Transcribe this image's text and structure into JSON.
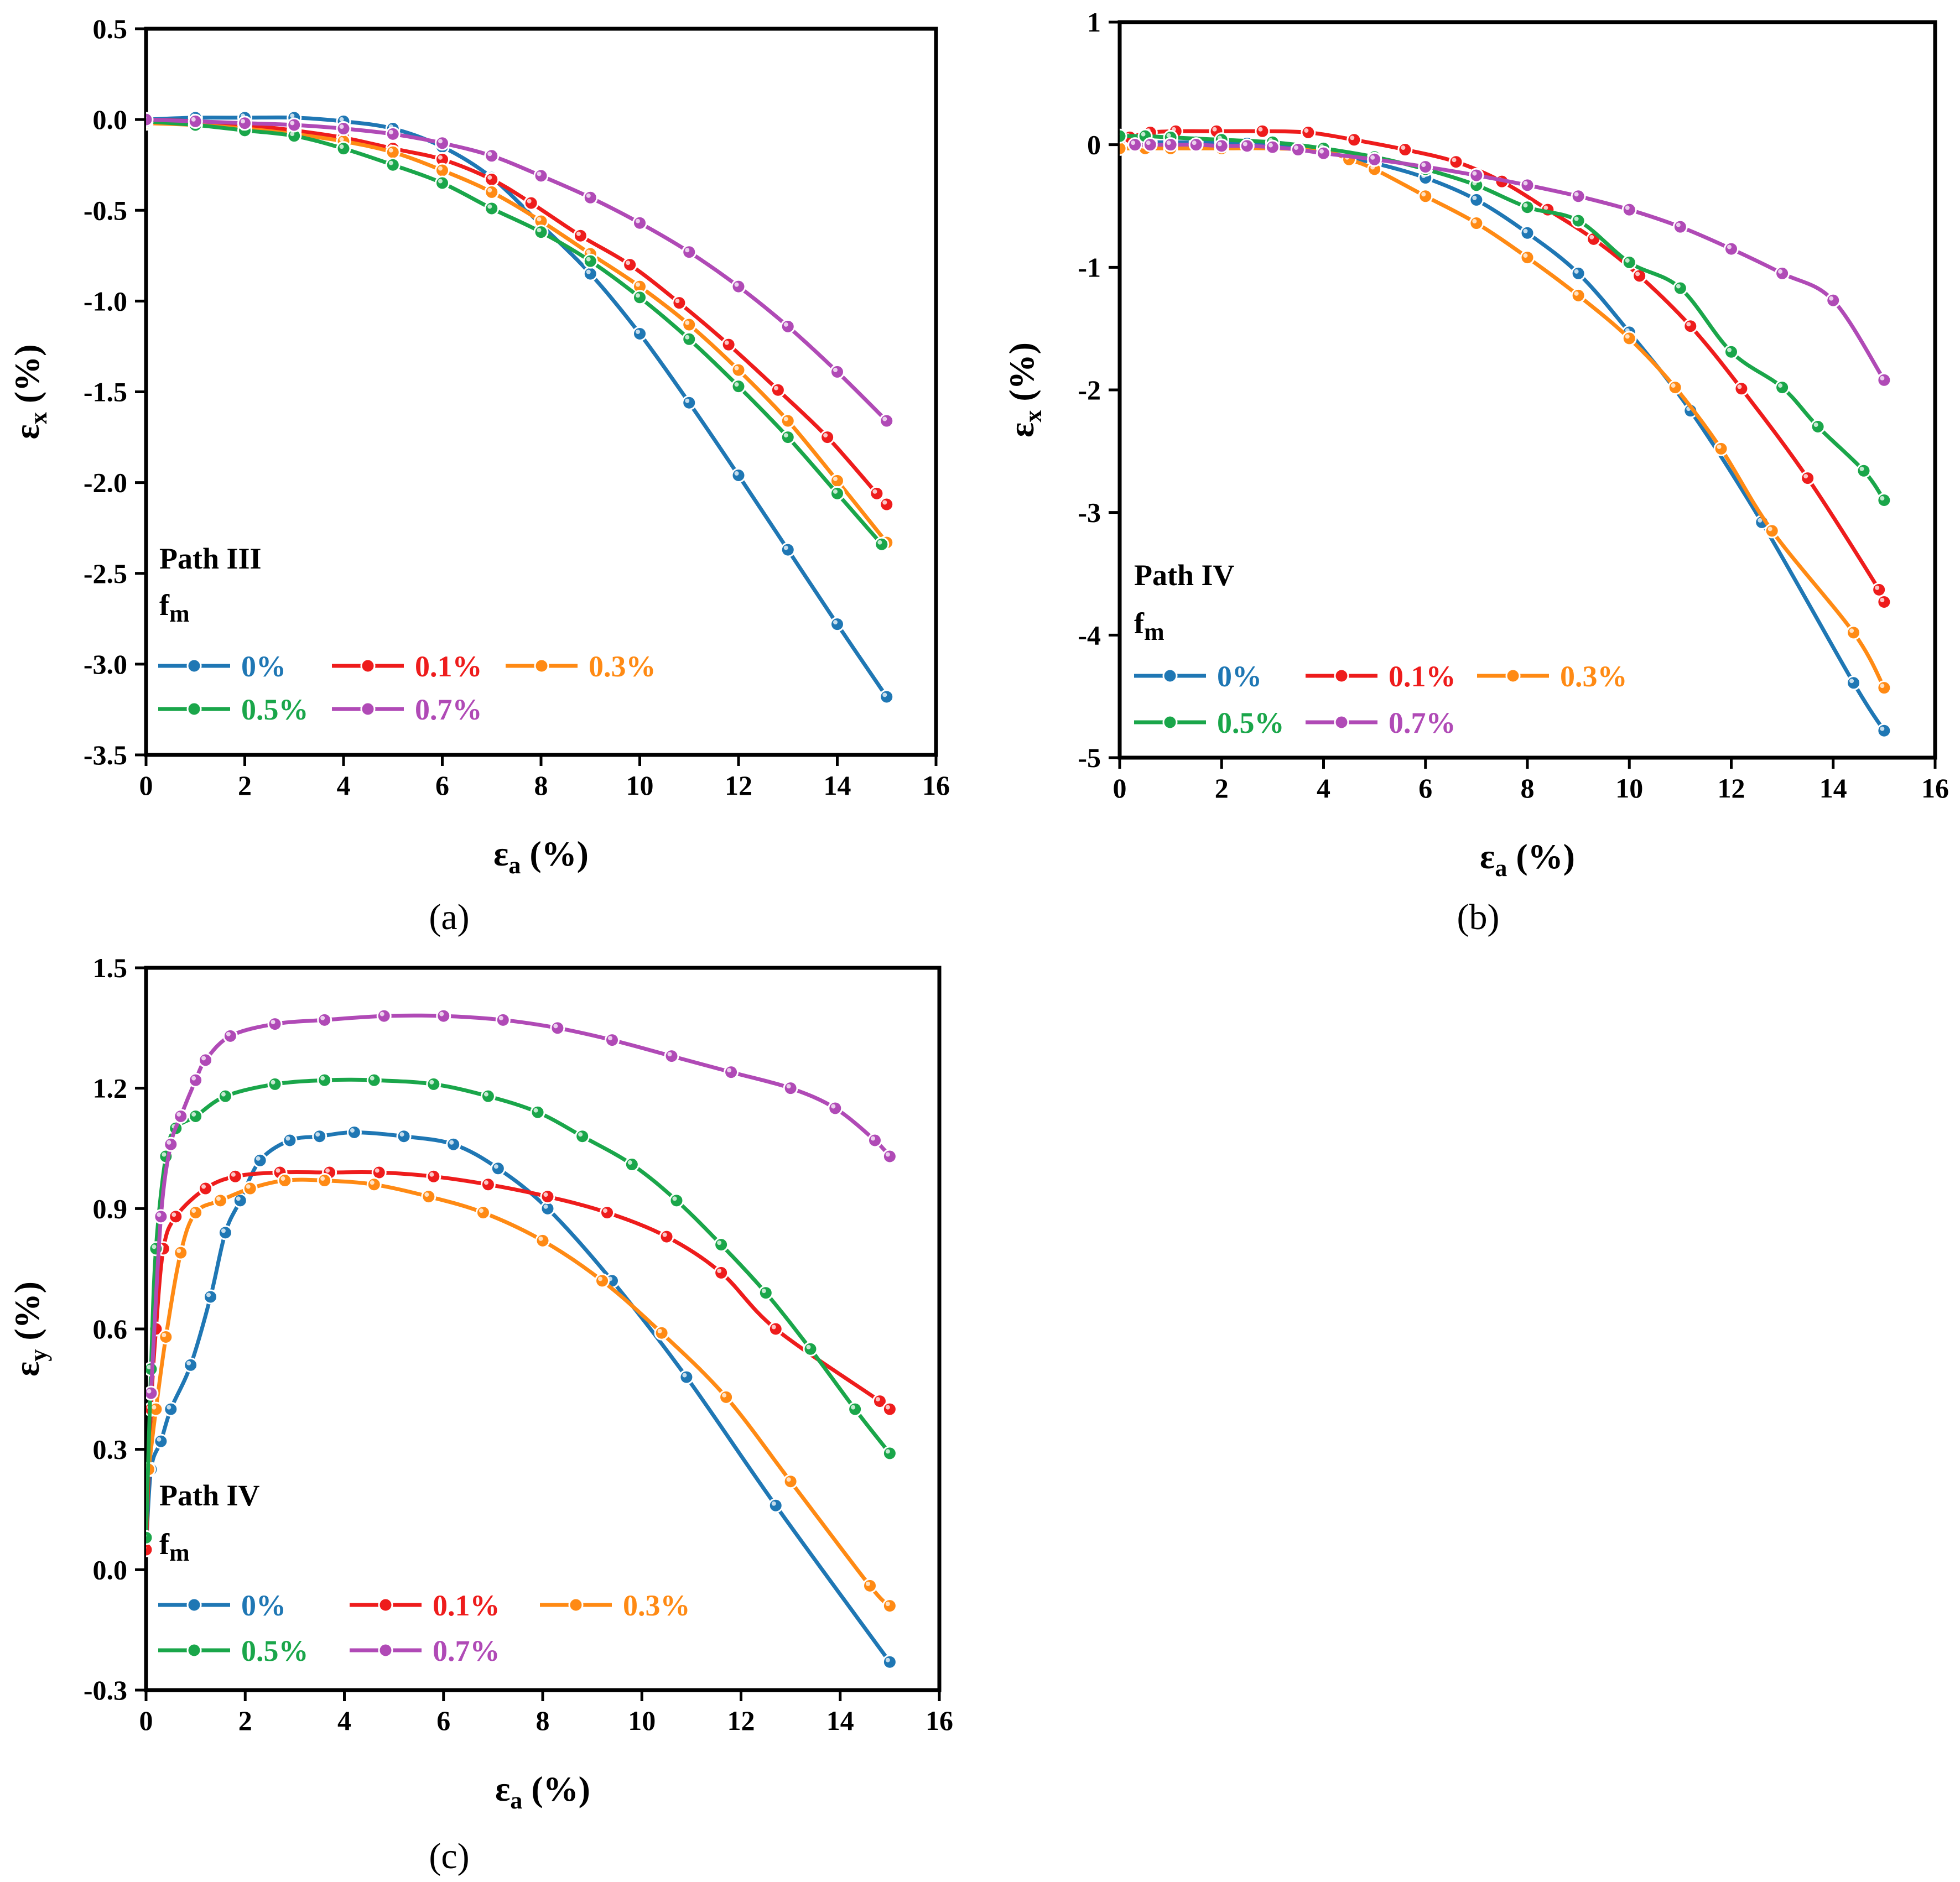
{
  "colors": {
    "0%": "#1f77b4",
    "0.1%": "#ee1c1c",
    "0.3%": "#ff8a14",
    "0.5%": "#1aa64a",
    "0.7%": "#b04ab6"
  },
  "chart_data": [
    {
      "type": "line",
      "caption": "(a)",
      "annotation": "Path III",
      "fm_label": "f",
      "fm_sub": "m",
      "xlabel": "ε",
      "xlabel_sub": "a",
      "xlabel_unit": " (%)",
      "ylabel": "ε",
      "ylabel_sub": "x",
      "ylabel_unit": " (%)",
      "xlim": [
        0,
        16
      ],
      "ylim": [
        -3.5,
        0.5
      ],
      "xticks": [
        "0",
        "2",
        "4",
        "6",
        "8",
        "10",
        "12",
        "14",
        "16"
      ],
      "yticks": [
        "-3.5",
        "-3.0",
        "-2.5",
        "-2.0",
        "-1.5",
        "-1.0",
        "-0.5",
        "0.0",
        "0.5"
      ],
      "legend_order": [
        "0%",
        "0.1%",
        "0.3%",
        "0.5%",
        "0.7%"
      ],
      "series": [
        {
          "name": "0%",
          "x": [
            0,
            1,
            2,
            3,
            4,
            5,
            6,
            7,
            8,
            9,
            10,
            11,
            12,
            13,
            14,
            15
          ],
          "y": [
            0,
            0.01,
            0.01,
            0.01,
            -0.01,
            -0.05,
            -0.15,
            -0.32,
            -0.58,
            -0.85,
            -1.18,
            -1.56,
            -1.96,
            -2.37,
            -2.78,
            -3.18
          ]
        },
        {
          "name": "0.1%",
          "x": [
            0,
            1,
            2,
            3,
            4,
            5,
            6,
            7,
            7.8,
            8.8,
            9.8,
            10.8,
            11.8,
            12.8,
            13.8,
            14.8,
            15
          ],
          "y": [
            0,
            -0.01,
            -0.03,
            -0.06,
            -0.1,
            -0.16,
            -0.22,
            -0.33,
            -0.46,
            -0.64,
            -0.8,
            -1.01,
            -1.24,
            -1.49,
            -1.75,
            -2.06,
            -2.12
          ]
        },
        {
          "name": "0.3%",
          "x": [
            0,
            1,
            2,
            3,
            4,
            5,
            6,
            7,
            8,
            9,
            10,
            11,
            12,
            13,
            14,
            15
          ],
          "y": [
            -0.02,
            -0.03,
            -0.05,
            -0.08,
            -0.12,
            -0.18,
            -0.28,
            -0.4,
            -0.56,
            -0.74,
            -0.92,
            -1.13,
            -1.38,
            -1.66,
            -1.99,
            -2.33
          ]
        },
        {
          "name": "0.5%",
          "x": [
            0,
            1,
            2,
            3,
            4,
            5,
            6,
            7,
            8,
            9,
            10,
            11,
            12,
            13,
            14,
            14.9
          ],
          "y": [
            -0.01,
            -0.03,
            -0.06,
            -0.09,
            -0.16,
            -0.25,
            -0.35,
            -0.49,
            -0.62,
            -0.78,
            -0.98,
            -1.21,
            -1.47,
            -1.75,
            -2.06,
            -2.34
          ]
        },
        {
          "name": "0.7%",
          "x": [
            0,
            1,
            2,
            3,
            4,
            5,
            6,
            7,
            8,
            9,
            10,
            11,
            12,
            13,
            14,
            15
          ],
          "y": [
            0,
            -0.01,
            -0.02,
            -0.03,
            -0.05,
            -0.08,
            -0.13,
            -0.2,
            -0.31,
            -0.43,
            -0.57,
            -0.73,
            -0.92,
            -1.14,
            -1.39,
            -1.66
          ]
        }
      ]
    },
    {
      "type": "line",
      "caption": "(b)",
      "annotation": "Path IV",
      "fm_label": "f",
      "fm_sub": "m",
      "xlabel": "ε",
      "xlabel_sub": "a",
      "xlabel_unit": " (%)",
      "ylabel": "ε",
      "ylabel_sub": "x",
      "ylabel_unit": " (%)",
      "xlim": [
        0,
        16
      ],
      "ylim": [
        -5,
        1
      ],
      "xticks": [
        "0",
        "2",
        "4",
        "6",
        "8",
        "10",
        "12",
        "14",
        "16"
      ],
      "yticks": [
        "-5",
        "-4",
        "-3",
        "-2",
        "-1",
        "0",
        "1"
      ],
      "legend_order": [
        "0%",
        "0.1%",
        "0.3%",
        "0.5%",
        "0.7%"
      ],
      "series": [
        {
          "name": "0%",
          "x": [
            0,
            0.3,
            0.6,
            1,
            1.5,
            2,
            2.5,
            3,
            3.5,
            4,
            5,
            6,
            7,
            8,
            9,
            10,
            11.2,
            12.6,
            14.4,
            15
          ],
          "y": [
            0.02,
            0.02,
            0.02,
            0.02,
            0.02,
            0.02,
            0.01,
            0,
            -0.03,
            -0.06,
            -0.15,
            -0.27,
            -0.45,
            -0.72,
            -1.05,
            -1.53,
            -2.17,
            -3.08,
            -4.39,
            -4.78
          ]
        },
        {
          "name": "0.1%",
          "x": [
            0,
            0.2,
            0.6,
            1.1,
            1.9,
            2.8,
            3.7,
            4.6,
            5.6,
            6.6,
            7.5,
            8.4,
            9.3,
            10.2,
            11.2,
            12.2,
            13.5,
            14.9,
            15
          ],
          "y": [
            0.03,
            0.06,
            0.1,
            0.11,
            0.11,
            0.11,
            0.1,
            0.04,
            -0.04,
            -0.14,
            -0.3,
            -0.53,
            -0.77,
            -1.07,
            -1.48,
            -1.99,
            -2.72,
            -3.63,
            -3.73
          ]
        },
        {
          "name": "0.3%",
          "x": [
            0,
            0.5,
            1,
            2,
            3,
            4,
            4.5,
            5,
            6,
            7,
            8,
            9,
            10,
            10.9,
            11.8,
            12.8,
            14.4,
            15
          ],
          "y": [
            -0.03,
            -0.03,
            -0.03,
            -0.03,
            -0.03,
            -0.05,
            -0.12,
            -0.2,
            -0.42,
            -0.64,
            -0.92,
            -1.23,
            -1.58,
            -1.98,
            -2.48,
            -3.15,
            -3.98,
            -4.43
          ]
        },
        {
          "name": "0.5%",
          "x": [
            0,
            0.5,
            1,
            2,
            3,
            4,
            5,
            6,
            7,
            8,
            9,
            10,
            11,
            12,
            13,
            13.7,
            14.6,
            15
          ],
          "y": [
            0.07,
            0.07,
            0.06,
            0.04,
            0.02,
            -0.03,
            -0.1,
            -0.2,
            -0.33,
            -0.51,
            -0.62,
            -0.96,
            -1.17,
            -1.69,
            -1.98,
            -2.3,
            -2.66,
            -2.9
          ]
        },
        {
          "name": "0.7%",
          "x": [
            0.3,
            0.6,
            1,
            1.5,
            2,
            2.5,
            3,
            3.5,
            4,
            5,
            6,
            7,
            8,
            9,
            10,
            11,
            12,
            13,
            14,
            15
          ],
          "y": [
            0,
            0,
            0,
            0,
            -0.01,
            -0.01,
            -0.02,
            -0.04,
            -0.07,
            -0.12,
            -0.18,
            -0.25,
            -0.33,
            -0.42,
            -0.53,
            -0.67,
            -0.85,
            -1.05,
            -1.27,
            -1.92
          ]
        }
      ]
    },
    {
      "type": "line",
      "caption": "(c)",
      "annotation": "Path IV",
      "fm_label": "f",
      "fm_sub": "m",
      "xlabel": "ε",
      "xlabel_sub": "a",
      "xlabel_unit": " (%)",
      "ylabel": "ε",
      "ylabel_sub": "y",
      "ylabel_unit": " (%)",
      "xlim": [
        0,
        16
      ],
      "ylim": [
        -0.3,
        1.5
      ],
      "xticks": [
        "0",
        "2",
        "4",
        "6",
        "8",
        "10",
        "12",
        "14",
        "16"
      ],
      "yticks": [
        "-0.3",
        "0.0",
        "0.3",
        "0.6",
        "0.9",
        "1.2",
        "1.5"
      ],
      "legend_order": [
        "0%",
        "0.1%",
        "0.3%",
        "0.5%",
        "0.7%"
      ],
      "series": [
        {
          "name": "0%",
          "x": [
            0,
            0.1,
            0.3,
            0.5,
            0.9,
            1.3,
            1.6,
            1.9,
            2.3,
            2.9,
            3.5,
            4.2,
            5.2,
            6.2,
            7.1,
            8.1,
            9.4,
            10.9,
            12.7,
            15
          ],
          "y": [
            0.05,
            0.25,
            0.32,
            0.4,
            0.51,
            0.68,
            0.84,
            0.92,
            1.02,
            1.07,
            1.08,
            1.09,
            1.08,
            1.06,
            1.0,
            0.9,
            0.72,
            0.48,
            0.16,
            -0.23
          ]
        },
        {
          "name": "0.1%",
          "x": [
            0,
            0.1,
            0.2,
            0.35,
            0.6,
            1.2,
            1.8,
            2.7,
            3.7,
            4.7,
            5.8,
            6.9,
            8.1,
            9.3,
            10.5,
            11.6,
            12.7,
            14.8,
            15
          ],
          "y": [
            0.05,
            0.4,
            0.6,
            0.8,
            0.88,
            0.95,
            0.98,
            0.99,
            0.99,
            0.99,
            0.98,
            0.96,
            0.93,
            0.89,
            0.83,
            0.74,
            0.6,
            0.42,
            0.4
          ]
        },
        {
          "name": "0.3%",
          "x": [
            0.05,
            0.2,
            0.4,
            0.7,
            1.0,
            1.5,
            2.1,
            2.8,
            3.6,
            4.6,
            5.7,
            6.8,
            8.0,
            9.2,
            10.4,
            11.7,
            13.0,
            14.6,
            15
          ],
          "y": [
            0.25,
            0.4,
            0.58,
            0.79,
            0.89,
            0.92,
            0.95,
            0.97,
            0.97,
            0.96,
            0.93,
            0.89,
            0.82,
            0.72,
            0.59,
            0.43,
            0.22,
            -0.04,
            -0.09
          ]
        },
        {
          "name": "0.5%",
          "x": [
            0,
            0.1,
            0.2,
            0.4,
            0.6,
            1.0,
            1.6,
            2.6,
            3.6,
            4.6,
            5.8,
            6.9,
            7.9,
            8.8,
            9.8,
            10.7,
            11.6,
            12.5,
            13.4,
            14.3,
            15
          ],
          "y": [
            0.08,
            0.5,
            0.8,
            1.03,
            1.1,
            1.13,
            1.18,
            1.21,
            1.22,
            1.22,
            1.21,
            1.18,
            1.14,
            1.08,
            1.01,
            0.92,
            0.81,
            0.69,
            0.55,
            0.4,
            0.29
          ]
        },
        {
          "name": "0.7%",
          "x": [
            0.1,
            0.3,
            0.5,
            0.7,
            1.0,
            1.2,
            1.7,
            2.6,
            3.6,
            4.8,
            6.0,
            7.2,
            8.3,
            9.4,
            10.6,
            11.8,
            13.0,
            13.9,
            14.7,
            15
          ],
          "y": [
            0.44,
            0.88,
            1.06,
            1.13,
            1.22,
            1.27,
            1.33,
            1.36,
            1.37,
            1.38,
            1.38,
            1.37,
            1.35,
            1.32,
            1.28,
            1.24,
            1.2,
            1.15,
            1.07,
            1.03
          ]
        }
      ]
    }
  ]
}
